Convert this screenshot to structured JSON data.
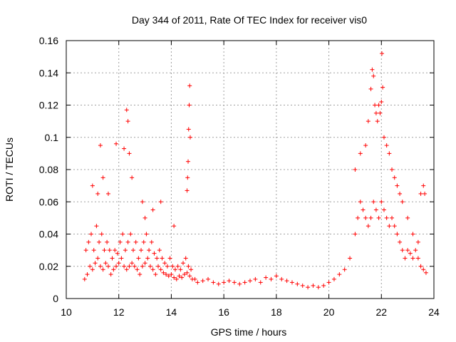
{
  "chart_data": {
    "type": "scatter",
    "title": "Day 344 of 2011, Rate Of TEC Index for receiver vis0",
    "xlabel": "GPS time / hours",
    "ylabel": "ROTI / TECUs",
    "xlim": [
      10,
      24
    ],
    "ylim": [
      0,
      0.16
    ],
    "x_ticks": [
      10,
      12,
      14,
      16,
      18,
      20,
      22,
      24
    ],
    "y_ticks": [
      0,
      0.02,
      0.04,
      0.06,
      0.08,
      0.1,
      0.12,
      0.14,
      0.16
    ],
    "x_tick_labels": [
      "10",
      "12",
      "14",
      "16",
      "18",
      "20",
      "22",
      "24"
    ],
    "y_tick_labels": [
      "0",
      "0.02",
      "0.04",
      "0.06",
      "0.08",
      "0.1",
      "0.12",
      "0.14",
      "0.16"
    ],
    "grid": true,
    "marker": "plus",
    "marker_color": "#ff0000",
    "series": [
      {
        "x": [
          10.7,
          10.8,
          10.9,
          11.0,
          11.1,
          11.2,
          11.3,
          11.4,
          11.5,
          11.6,
          11.7,
          11.8,
          11.9,
          12.0,
          12.1,
          12.2,
          12.3,
          12.4,
          12.5,
          12.6,
          12.7,
          12.8,
          12.9,
          13.0,
          13.1,
          13.2,
          13.3,
          13.4,
          13.5,
          13.6,
          13.7,
          13.8,
          13.9,
          14.0,
          14.1,
          14.2,
          14.3,
          14.4,
          14.5,
          14.6,
          14.7,
          14.8,
          14.9,
          15.0,
          15.2,
          15.4,
          15.6,
          15.8,
          16.0,
          16.2,
          16.4,
          16.6,
          16.8,
          17.0,
          17.2,
          17.4,
          17.6,
          17.8,
          18.0,
          18.2,
          18.4,
          18.6,
          18.8,
          19.0,
          19.2,
          19.4,
          19.6,
          19.8,
          20.0,
          20.2,
          20.4,
          20.6,
          20.8,
          21.0,
          21.1,
          21.2,
          21.3,
          21.4,
          21.5,
          21.6,
          21.7,
          21.8,
          21.9,
          22.0,
          22.1,
          22.2,
          22.3,
          22.4,
          22.5,
          22.6,
          22.7,
          22.8,
          22.9,
          23.0,
          23.1,
          23.2,
          23.3,
          23.4,
          23.5,
          23.6,
          23.7,
          10.75,
          10.85,
          10.95,
          11.05,
          11.15,
          11.25,
          11.35,
          11.45,
          11.55,
          11.65,
          11.75,
          11.85,
          11.95,
          12.05,
          12.15,
          12.25,
          12.35,
          12.45,
          12.55,
          12.65,
          12.75,
          12.85,
          12.95,
          13.05,
          13.15,
          13.25,
          13.35,
          13.45,
          13.55,
          13.65,
          13.75,
          13.85,
          13.95,
          14.05,
          14.15,
          14.25,
          14.35,
          14.45,
          14.55,
          14.65,
          14.75,
          11.0,
          11.2,
          11.3,
          11.4,
          11.6,
          11.9,
          12.2,
          12.3,
          12.35,
          12.4,
          12.5,
          12.9,
          13.0,
          13.3,
          13.6,
          14.1,
          14.6,
          14.62,
          14.64,
          14.66,
          14.68,
          14.7,
          14.72,
          21.0,
          21.2,
          21.4,
          21.5,
          21.6,
          21.65,
          21.7,
          21.75,
          21.8,
          21.85,
          21.9,
          21.95,
          22.0,
          22.02,
          22.05,
          22.1,
          22.2,
          22.3,
          22.4,
          22.5,
          22.6,
          22.7,
          22.8,
          23.0,
          23.2,
          23.4,
          23.5,
          23.6,
          23.65
        ],
        "y": [
          0.012,
          0.015,
          0.02,
          0.018,
          0.022,
          0.025,
          0.02,
          0.018,
          0.022,
          0.02,
          0.015,
          0.018,
          0.02,
          0.022,
          0.025,
          0.02,
          0.018,
          0.02,
          0.022,
          0.02,
          0.018,
          0.015,
          0.02,
          0.022,
          0.025,
          0.02,
          0.018,
          0.015,
          0.02,
          0.018,
          0.016,
          0.015,
          0.014,
          0.015,
          0.013,
          0.012,
          0.014,
          0.013,
          0.015,
          0.016,
          0.014,
          0.012,
          0.012,
          0.01,
          0.011,
          0.012,
          0.01,
          0.009,
          0.01,
          0.011,
          0.01,
          0.009,
          0.01,
          0.011,
          0.012,
          0.01,
          0.013,
          0.012,
          0.014,
          0.012,
          0.011,
          0.01,
          0.009,
          0.008,
          0.007,
          0.008,
          0.007,
          0.008,
          0.01,
          0.012,
          0.015,
          0.018,
          0.025,
          0.04,
          0.05,
          0.06,
          0.055,
          0.05,
          0.045,
          0.05,
          0.06,
          0.055,
          0.05,
          0.06,
          0.055,
          0.05,
          0.045,
          0.05,
          0.045,
          0.04,
          0.035,
          0.03,
          0.025,
          0.03,
          0.028,
          0.025,
          0.03,
          0.025,
          0.02,
          0.018,
          0.016,
          0.03,
          0.035,
          0.04,
          0.03,
          0.045,
          0.035,
          0.04,
          0.03,
          0.035,
          0.03,
          0.025,
          0.03,
          0.028,
          0.035,
          0.04,
          0.03,
          0.035,
          0.04,
          0.03,
          0.035,
          0.025,
          0.03,
          0.035,
          0.04,
          0.03,
          0.035,
          0.028,
          0.025,
          0.03,
          0.025,
          0.022,
          0.02,
          0.025,
          0.02,
          0.018,
          0.02,
          0.018,
          0.022,
          0.025,
          0.02,
          0.018,
          0.07,
          0.065,
          0.095,
          0.075,
          0.065,
          0.096,
          0.093,
          0.117,
          0.11,
          0.09,
          0.075,
          0.06,
          0.05,
          0.055,
          0.06,
          0.045,
          0.067,
          0.075,
          0.085,
          0.105,
          0.12,
          0.132,
          0.1,
          0.08,
          0.09,
          0.095,
          0.11,
          0.13,
          0.142,
          0.138,
          0.12,
          0.115,
          0.11,
          0.12,
          0.115,
          0.122,
          0.152,
          0.131,
          0.1,
          0.095,
          0.09,
          0.08,
          0.075,
          0.07,
          0.065,
          0.06,
          0.05,
          0.04,
          0.035,
          0.065,
          0.07,
          0.065
        ]
      }
    ]
  }
}
